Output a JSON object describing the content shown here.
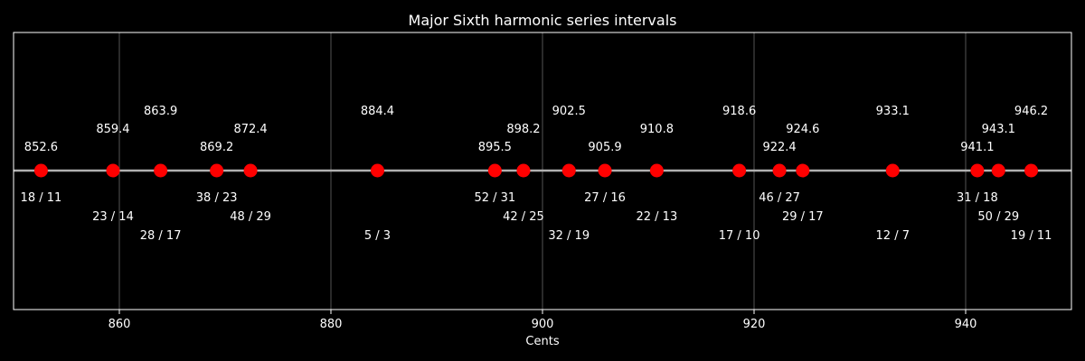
{
  "chart_data": {
    "type": "scatter",
    "title": "Major Sixth harmonic series intervals",
    "xlabel": "Cents",
    "ylabel": "",
    "xlim": [
      850,
      950
    ],
    "xticks": [
      860,
      880,
      900,
      920,
      940
    ],
    "grid": "vertical",
    "colors": {
      "background": "#000000",
      "line": "#b0b0b0",
      "marker": "#ff0000",
      "text": "#ffffff",
      "grid": "#555555",
      "frame": "#ffffff"
    },
    "points": [
      {
        "cents": 852.6,
        "cents_label": "852.6",
        "ratio": "18 / 11"
      },
      {
        "cents": 859.4,
        "cents_label": "859.4",
        "ratio": "23 / 14"
      },
      {
        "cents": 863.9,
        "cents_label": "863.9",
        "ratio": "28 / 17"
      },
      {
        "cents": 869.2,
        "cents_label": "869.2",
        "ratio": "38 / 23"
      },
      {
        "cents": 872.4,
        "cents_label": "872.4",
        "ratio": "48 / 29"
      },
      {
        "cents": 884.4,
        "cents_label": "884.4",
        "ratio": "5 / 3"
      },
      {
        "cents": 895.5,
        "cents_label": "895.5",
        "ratio": "52 / 31"
      },
      {
        "cents": 898.2,
        "cents_label": "898.2",
        "ratio": "42 / 25"
      },
      {
        "cents": 902.5,
        "cents_label": "902.5",
        "ratio": "32 / 19"
      },
      {
        "cents": 905.9,
        "cents_label": "905.9",
        "ratio": "27 / 16"
      },
      {
        "cents": 910.8,
        "cents_label": "910.8",
        "ratio": "22 / 13"
      },
      {
        "cents": 918.6,
        "cents_label": "918.6",
        "ratio": "17 / 10"
      },
      {
        "cents": 922.4,
        "cents_label": "922.4",
        "ratio": "46 / 27"
      },
      {
        "cents": 924.6,
        "cents_label": "924.6",
        "ratio": "29 / 17"
      },
      {
        "cents": 933.1,
        "cents_label": "933.1",
        "ratio": "12 / 7"
      },
      {
        "cents": 941.1,
        "cents_label": "941.1",
        "ratio": "31 / 18"
      },
      {
        "cents": 943.1,
        "cents_label": "943.1",
        "ratio": "50 / 29"
      },
      {
        "cents": 946.2,
        "cents_label": "946.2",
        "ratio": "19 / 11"
      }
    ]
  }
}
